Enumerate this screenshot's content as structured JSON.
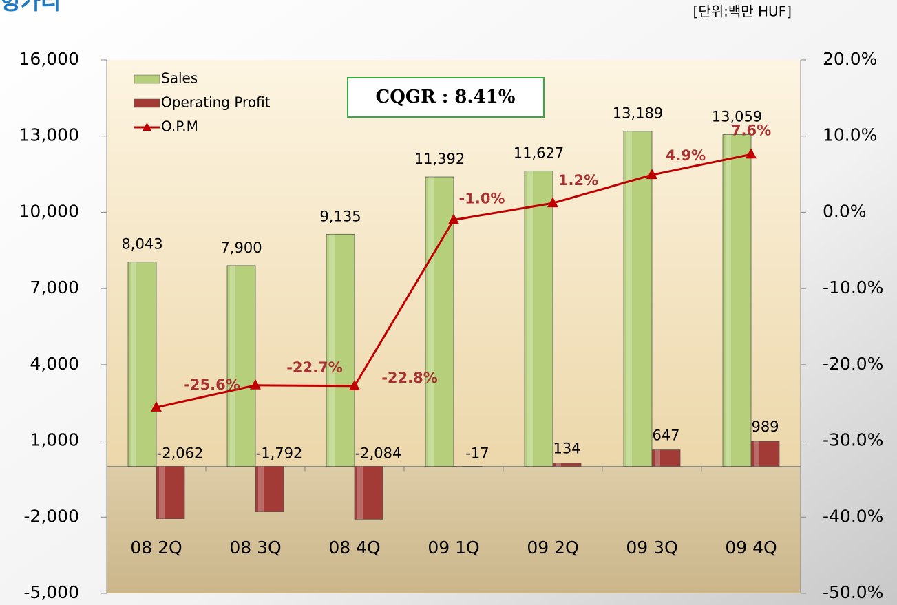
{
  "chart_data": {
    "type": "bar",
    "title": "헝가리",
    "unit_note": "[단위:백만 HUF]",
    "annotation": "CQGR : 8.41%",
    "categories": [
      "08 2Q",
      "08 3Q",
      "08 4Q",
      "09 1Q",
      "09 2Q",
      "09 3Q",
      "09 4Q"
    ],
    "series": [
      {
        "name": "Sales",
        "type": "bar",
        "color": "#b5cf7a",
        "values": [
          8043,
          7900,
          9135,
          11392,
          11627,
          13189,
          13059
        ],
        "value_labels": [
          "8,043",
          "7,900",
          "9,135",
          "11,392",
          "11,627",
          "13,189",
          "13,059"
        ]
      },
      {
        "name": "Operating Profit",
        "type": "bar",
        "color": "#a23b36",
        "values": [
          -2062,
          -1792,
          -2084,
          -17,
          134,
          647,
          989
        ],
        "value_labels": [
          "-2,062",
          "-1,792",
          "-2,084",
          "-17",
          "134",
          "647",
          "989"
        ]
      },
      {
        "name": "O.P.M",
        "type": "line",
        "axis": "y2",
        "color": "#c00000",
        "values": [
          -25.6,
          -22.7,
          -22.8,
          -1.0,
          1.2,
          4.9,
          7.6
        ],
        "value_labels": [
          "-25.6%",
          "-22.7%",
          "-22.8%",
          "-1.0%",
          "1.2%",
          "4.9%",
          "7.6%"
        ]
      }
    ],
    "ylim": [
      -5000,
      16000
    ],
    "yticks": [
      {
        "value": -5000,
        "label": "-5,000"
      },
      {
        "value": -2000,
        "label": "-2,000"
      },
      {
        "value": 1000,
        "label": "1,000"
      },
      {
        "value": 4000,
        "label": "4,000"
      },
      {
        "value": 7000,
        "label": "7,000"
      },
      {
        "value": 10000,
        "label": "10,000"
      },
      {
        "value": 13000,
        "label": "13,000"
      },
      {
        "value": 16000,
        "label": "16,000"
      }
    ],
    "y2lim": [
      -50,
      20
    ],
    "y2ticks": [
      {
        "value": -50,
        "label": "-50.0%"
      },
      {
        "value": -40,
        "label": "-40.0%"
      },
      {
        "value": -30,
        "label": "-30.0%"
      },
      {
        "value": -20,
        "label": "-20.0%"
      },
      {
        "value": -10,
        "label": "-10.0%"
      },
      {
        "value": 0,
        "label": "0.0%"
      },
      {
        "value": 10,
        "label": "10.0%"
      },
      {
        "value": 20,
        "label": "20.0%"
      }
    ],
    "grid": false,
    "legend": "top-left"
  }
}
